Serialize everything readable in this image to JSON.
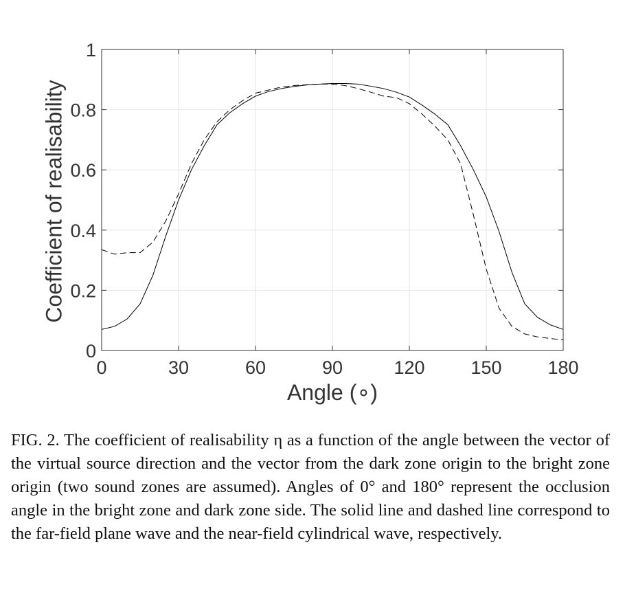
{
  "chart_data": {
    "type": "line",
    "xlabel": "Angle (∘)",
    "ylabel": "Coefficient of realisability",
    "xlim": [
      0,
      180
    ],
    "ylim": [
      0,
      1
    ],
    "x_ticks": [
      "0",
      "30",
      "60",
      "90",
      "120",
      "150",
      "180"
    ],
    "y_ticks": [
      "0",
      "0.2",
      "0.4",
      "0.6",
      "0.8",
      "1"
    ],
    "grid": true,
    "legend": "none",
    "series": [
      {
        "style": "solid",
        "color": "#000000",
        "x": [
          0,
          5,
          10,
          15,
          20,
          25,
          30,
          35,
          40,
          45,
          50,
          55,
          60,
          65,
          70,
          75,
          80,
          85,
          90,
          95,
          100,
          105,
          110,
          115,
          120,
          125,
          130,
          135,
          140,
          145,
          150,
          155,
          160,
          165,
          170,
          175,
          180
        ],
        "y": [
          0.07,
          0.08,
          0.105,
          0.155,
          0.25,
          0.38,
          0.5,
          0.6,
          0.68,
          0.75,
          0.79,
          0.82,
          0.845,
          0.86,
          0.87,
          0.877,
          0.882,
          0.885,
          0.887,
          0.887,
          0.885,
          0.878,
          0.87,
          0.858,
          0.842,
          0.815,
          0.785,
          0.75,
          0.68,
          0.6,
          0.51,
          0.395,
          0.26,
          0.155,
          0.11,
          0.085,
          0.07
        ]
      },
      {
        "style": "dashed",
        "color": "#000000",
        "x": [
          0,
          5,
          10,
          15,
          20,
          25,
          30,
          35,
          40,
          45,
          50,
          55,
          60,
          65,
          70,
          75,
          80,
          85,
          90,
          95,
          100,
          105,
          110,
          115,
          120,
          125,
          130,
          135,
          140,
          145,
          150,
          155,
          160,
          165,
          170,
          175,
          180
        ],
        "y": [
          0.335,
          0.32,
          0.325,
          0.325,
          0.36,
          0.43,
          0.52,
          0.62,
          0.7,
          0.76,
          0.8,
          0.83,
          0.855,
          0.865,
          0.875,
          0.88,
          0.883,
          0.885,
          0.885,
          0.88,
          0.87,
          0.858,
          0.845,
          0.84,
          0.82,
          0.785,
          0.745,
          0.7,
          0.62,
          0.45,
          0.27,
          0.14,
          0.08,
          0.055,
          0.045,
          0.04,
          0.035
        ]
      }
    ]
  },
  "caption": {
    "text": "FIG. 2. The coefficient of realisability η as a function of the angle between the vector of the virtual source direction and the vector from the dark zone origin to the bright zone origin (two sound zones are assumed). Angles of 0° and 180° represent the occlusion angle in the bright zone and dark zone side. The solid line and dashed line correspond to the far-field plane wave and the near-field cylindrical wave, respectively."
  }
}
